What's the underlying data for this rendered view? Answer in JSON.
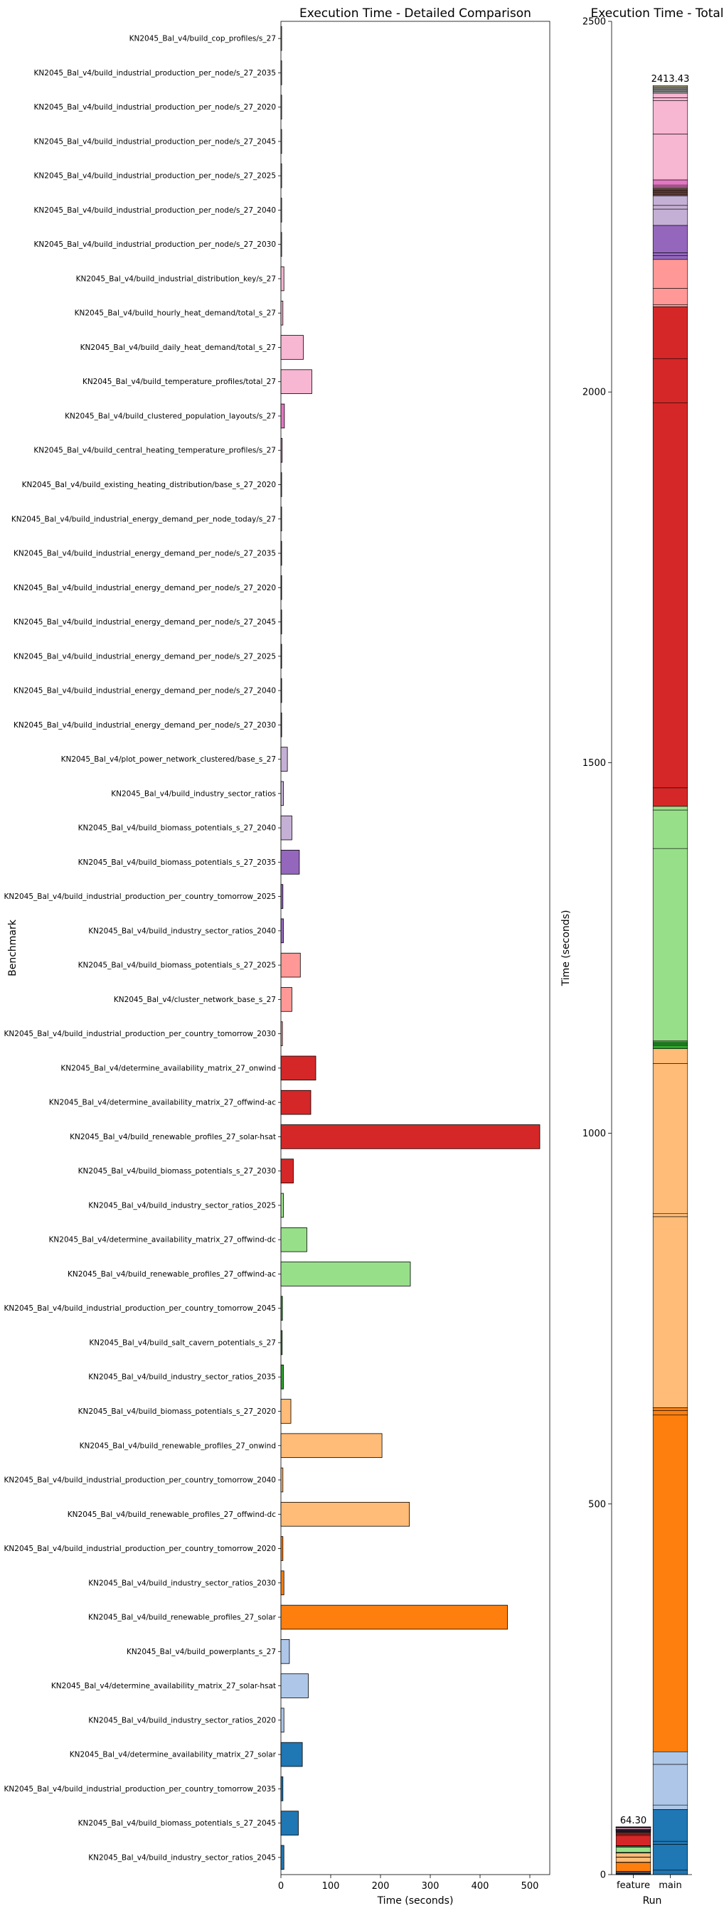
{
  "chart_data": [
    {
      "type": "bar",
      "orientation": "horizontal",
      "title": "Execution Time - Detailed Comparison",
      "xlabel": "Time (seconds)",
      "ylabel": "Benchmark",
      "xlim": [
        0,
        540
      ],
      "xticks": [
        0,
        100,
        200,
        300,
        400,
        500
      ],
      "grid": false,
      "categories": [
        "KN2045_Bal_v4/build_cop_profiles/s_27",
        "KN2045_Bal_v4/build_industrial_production_per_node/s_27_2035",
        "KN2045_Bal_v4/build_industrial_production_per_node/s_27_2020",
        "KN2045_Bal_v4/build_industrial_production_per_node/s_27_2045",
        "KN2045_Bal_v4/build_industrial_production_per_node/s_27_2025",
        "KN2045_Bal_v4/build_industrial_production_per_node/s_27_2040",
        "KN2045_Bal_v4/build_industrial_production_per_node/s_27_2030",
        "KN2045_Bal_v4/build_industrial_distribution_key/s_27",
        "KN2045_Bal_v4/build_hourly_heat_demand/total_s_27",
        "KN2045_Bal_v4/build_daily_heat_demand/total_s_27",
        "KN2045_Bal_v4/build_temperature_profiles/total_27",
        "KN2045_Bal_v4/build_clustered_population_layouts/s_27",
        "KN2045_Bal_v4/build_central_heating_temperature_profiles/s_27",
        "KN2045_Bal_v4/build_existing_heating_distribution/base_s_27_2020",
        "KN2045_Bal_v4/build_industrial_energy_demand_per_node_today/s_27",
        "KN2045_Bal_v4/build_industrial_energy_demand_per_node/s_27_2035",
        "KN2045_Bal_v4/build_industrial_energy_demand_per_node/s_27_2020",
        "KN2045_Bal_v4/build_industrial_energy_demand_per_node/s_27_2045",
        "KN2045_Bal_v4/build_industrial_energy_demand_per_node/s_27_2025",
        "KN2045_Bal_v4/build_industrial_energy_demand_per_node/s_27_2040",
        "KN2045_Bal_v4/build_industrial_energy_demand_per_node/s_27_2030",
        "KN2045_Bal_v4/plot_power_network_clustered/base_s_27",
        "KN2045_Bal_v4/build_industry_sector_ratios",
        "KN2045_Bal_v4/build_biomass_potentials_s_27_2040",
        "KN2045_Bal_v4/build_biomass_potentials_s_27_2035",
        "KN2045_Bal_v4/build_industrial_production_per_country_tomorrow_2025",
        "KN2045_Bal_v4/build_industry_sector_ratios_2040",
        "KN2045_Bal_v4/build_biomass_potentials_s_27_2025",
        "KN2045_Bal_v4/cluster_network_base_s_27",
        "KN2045_Bal_v4/build_industrial_production_per_country_tomorrow_2030",
        "KN2045_Bal_v4/determine_availability_matrix_27_onwind",
        "KN2045_Bal_v4/determine_availability_matrix_27_offwind-ac",
        "KN2045_Bal_v4/build_renewable_profiles_27_solar-hsat",
        "KN2045_Bal_v4/build_biomass_potentials_s_27_2030",
        "KN2045_Bal_v4/build_industry_sector_ratios_2025",
        "KN2045_Bal_v4/determine_availability_matrix_27_offwind-dc",
        "KN2045_Bal_v4/build_renewable_profiles_27_offwind-ac",
        "KN2045_Bal_v4/build_industrial_production_per_country_tomorrow_2045",
        "KN2045_Bal_v4/build_salt_cavern_potentials_s_27",
        "KN2045_Bal_v4/build_industry_sector_ratios_2035",
        "KN2045_Bal_v4/build_biomass_potentials_s_27_2020",
        "KN2045_Bal_v4/build_renewable_profiles_27_onwind",
        "KN2045_Bal_v4/build_industrial_production_per_country_tomorrow_2040",
        "KN2045_Bal_v4/build_renewable_profiles_27_offwind-dc",
        "KN2045_Bal_v4/build_industrial_production_per_country_tomorrow_2020",
        "KN2045_Bal_v4/build_industry_sector_ratios_2030",
        "KN2045_Bal_v4/build_renewable_profiles_27_solar",
        "KN2045_Bal_v4/build_powerplants_s_27",
        "KN2045_Bal_v4/determine_availability_matrix_27_solar-hsat",
        "KN2045_Bal_v4/build_industry_sector_ratios_2020",
        "KN2045_Bal_v4/determine_availability_matrix_27_solar",
        "KN2045_Bal_v4/build_industrial_production_per_country_tomorrow_2035",
        "KN2045_Bal_v4/build_biomass_potentials_s_27_2045",
        "KN2045_Bal_v4/build_industry_sector_ratios_2045"
      ],
      "values": [
        1.5,
        1.5,
        1.5,
        1.5,
        1.5,
        1.5,
        1.5,
        6,
        4,
        45,
        62,
        7,
        2.5,
        1.5,
        1.5,
        1.5,
        1.5,
        1.5,
        1.5,
        1.5,
        1.5,
        13,
        5,
        22,
        37,
        4,
        5,
        39,
        22,
        3,
        70,
        60,
        520,
        25,
        5,
        52,
        260,
        3,
        2.5,
        5,
        20,
        203,
        4,
        258,
        4,
        6,
        455,
        17,
        55,
        6,
        43,
        4,
        35,
        6
      ],
      "colors": [
        "#dbdb8d",
        "#c7c7c7",
        "#c7c7c7",
        "#c7c7c7",
        "#c7c7c7",
        "#c7c7c7",
        "#c7c7c7",
        "#f7b6d2",
        "#f7b6d2",
        "#f7b6d2",
        "#f7b6d2",
        "#e377c2",
        "#e377c2",
        "#c49c94",
        "#c49c94",
        "#8c564b",
        "#8c564b",
        "#8c564b",
        "#8c564b",
        "#8c564b",
        "#8c564b",
        "#c5b0d5",
        "#c5b0d5",
        "#c5b0d5",
        "#9467bd",
        "#9467bd",
        "#9467bd",
        "#ff9896",
        "#ff9896",
        "#ff9896",
        "#d62728",
        "#d62728",
        "#d62728",
        "#d62728",
        "#98df8a",
        "#98df8a",
        "#98df8a",
        "#2ca02c",
        "#2ca02c",
        "#2ca02c",
        "#ffbb78",
        "#ffbb78",
        "#ffbb78",
        "#ffbb78",
        "#ff7f0e",
        "#ff7f0e",
        "#ff7f0e",
        "#aec7e8",
        "#aec7e8",
        "#aec7e8",
        "#1f77b4",
        "#1f77b4",
        "#1f77b4",
        "#1f77b4"
      ]
    },
    {
      "type": "bar",
      "stacked": true,
      "title": "Execution Time - Total",
      "xlabel": "Run",
      "ylabel": "Time (seconds)",
      "categories": [
        "feature",
        "main"
      ],
      "totals": [
        64.3,
        2413.43
      ],
      "total_labels": [
        "64.30",
        "2413.43"
      ],
      "ylim": [
        0,
        2500
      ],
      "yticks": [
        0,
        500,
        1000,
        1500,
        2000,
        2500
      ],
      "grid": false
    }
  ]
}
